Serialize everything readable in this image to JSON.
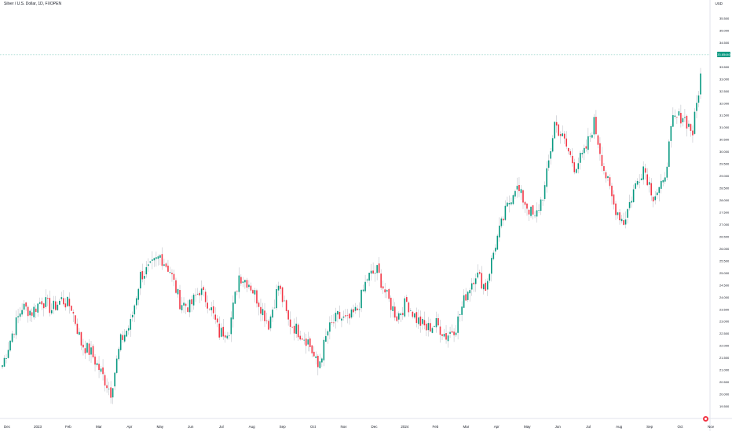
{
  "header": {
    "title": "Silver / U.S. Dollar, 1D, FXOPEN",
    "currency": "USD"
  },
  "last_price": {
    "label": "33.65440"
  },
  "chart_data": {
    "type": "candlestick",
    "title": "Silver / U.S. Dollar, 1D, FXOPEN",
    "ylim": [
      19.0,
      36.0
    ],
    "y_ticks": [
      "19.500",
      "20.000",
      "20.500",
      "21.000",
      "21.500",
      "22.000",
      "22.500",
      "23.000",
      "23.500",
      "24.000",
      "24.500",
      "25.000",
      "25.500",
      "26.000",
      "26.500",
      "27.000",
      "27.500",
      "28.000",
      "28.500",
      "29.000",
      "29.500",
      "30.000",
      "30.500",
      "31.000",
      "31.500",
      "32.000",
      "32.500",
      "33.000",
      "33.500",
      "34.000",
      "34.500",
      "35.000",
      "35.500"
    ],
    "x_ticks": [
      "Dec",
      "2023",
      "Feb",
      "Mar",
      "Apr",
      "May",
      "Jun",
      "Jul",
      "Aug",
      "Sep",
      "Oct",
      "Nov",
      "Dec",
      "2024",
      "Feb",
      "Mar",
      "Apr",
      "May",
      "Jun",
      "Jul",
      "Aug",
      "Sep",
      "Oct",
      "Nov"
    ],
    "price_line": 34.0,
    "up_color": "#089981",
    "down_color": "#f23645",
    "weekly_closes": [
      21.2,
      22.5,
      23.6,
      23.4,
      23.9,
      23.5,
      23.9,
      23.6,
      22.1,
      21.7,
      20.9,
      20.1,
      22.2,
      22.9,
      24.9,
      25.2,
      25.7,
      25.1,
      23.8,
      23.6,
      24.3,
      23.7,
      22.5,
      22.7,
      24.9,
      24.6,
      23.8,
      22.9,
      24.5,
      23.0,
      22.6,
      22.2,
      21.1,
      22.6,
      23.2,
      23.0,
      23.5,
      24.8,
      25.1,
      24.0,
      23.2,
      23.8,
      23.1,
      22.7,
      22.9,
      22.4,
      22.8,
      24.1,
      25.0,
      24.4,
      26.2,
      27.5,
      28.6,
      27.9,
      27.2,
      28.5,
      31.2,
      30.4,
      29.4,
      29.9,
      31.2,
      29.3,
      27.8,
      27.1,
      28.4,
      29.4,
      28.2,
      28.6,
      31.3,
      31.5,
      30.8,
      33.7
    ]
  }
}
